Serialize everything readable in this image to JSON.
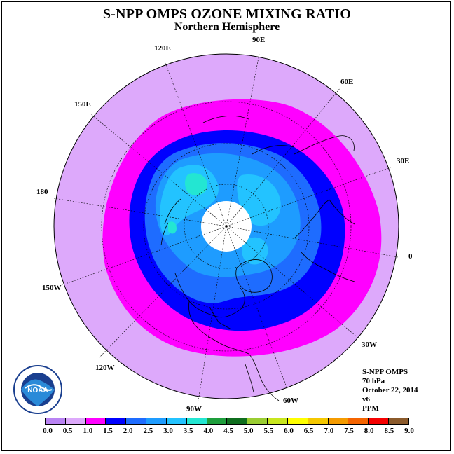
{
  "title": "S-NPP OMPS OZONE MIXING RATIO",
  "subtitle": "Northern Hemisphere",
  "map": {
    "projection": "polar stereographic",
    "longitude_labels": [
      {
        "text": "90E",
        "id": "lon-90e"
      },
      {
        "text": "60E",
        "id": "lon-60e"
      },
      {
        "text": "30E",
        "id": "lon-30e"
      },
      {
        "text": "0",
        "id": "lon-0"
      },
      {
        "text": "30W",
        "id": "lon-30w"
      },
      {
        "text": "60W",
        "id": "lon-60w"
      },
      {
        "text": "90W",
        "id": "lon-90w"
      },
      {
        "text": "120W",
        "id": "lon-120w"
      },
      {
        "text": "150W",
        "id": "lon-150w"
      },
      {
        "text": "180",
        "id": "lon-180"
      },
      {
        "text": "150E",
        "id": "lon-150e"
      },
      {
        "text": "120E",
        "id": "lon-120e"
      }
    ],
    "ozone_field": {
      "outer_level": "0.5-1.0 PPM",
      "ring": "1.0-1.5 PPM",
      "core_levels": [
        "1.5-2.0",
        "2.0-2.5",
        "2.5-3.0",
        "3.0-3.5",
        "3.5-4.0"
      ],
      "polar_gap": "no data"
    }
  },
  "info": {
    "instrument": "S-NPP OMPS",
    "level": "70 hPa",
    "date": "October 22, 2014",
    "version": "v6",
    "units": "PPM"
  },
  "colorbar": {
    "colors": [
      "#b983f3",
      "#dda9fb",
      "#ff00ff",
      "#0000ff",
      "#1e6cff",
      "#1e9cff",
      "#23c3ff",
      "#23e6d2",
      "#1e9e3c",
      "#0f6e1e",
      "#9acd32",
      "#c8e61e",
      "#ffff00",
      "#f5c800",
      "#f59b00",
      "#f56400",
      "#f50000",
      "#8b5a2b"
    ],
    "ticks": [
      "0.0",
      "0.5",
      "1.0",
      "1.5",
      "2.0",
      "2.5",
      "3.0",
      "3.5",
      "4.0",
      "4.5",
      "5.0",
      "5.5",
      "6.0",
      "6.5",
      "7.0",
      "7.5",
      "8.0",
      "8.5",
      "9.0"
    ]
  },
  "logo": {
    "text": "NOAA"
  }
}
